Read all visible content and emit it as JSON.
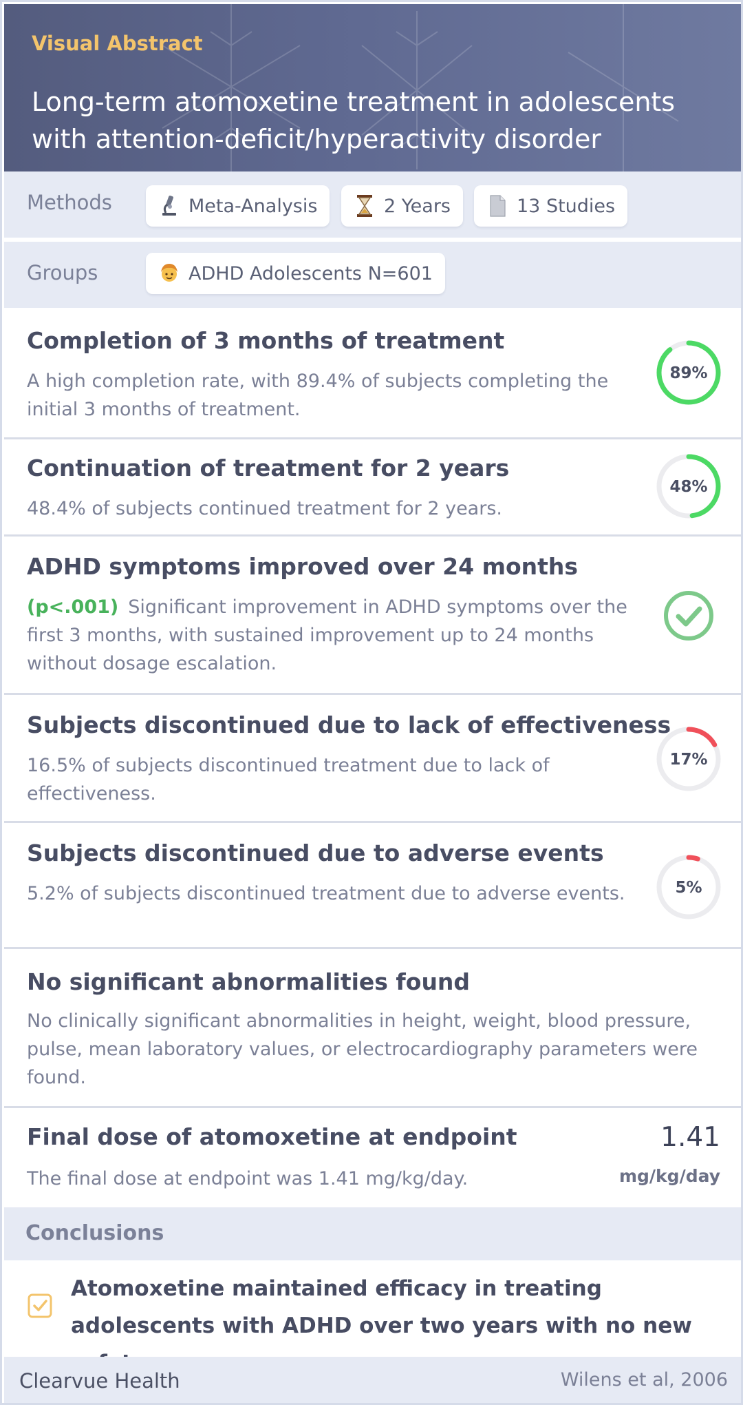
{
  "header": {
    "kicker": "Visual Abstract",
    "title": "Long-term atomoxetine treatment in adolescents with attention-deficit/hyperactivity disorder"
  },
  "methods": {
    "label": "Methods",
    "pills": [
      {
        "icon": "microscope-icon",
        "text": "Meta-Analysis"
      },
      {
        "icon": "hourglass-icon",
        "text": "2 Years"
      },
      {
        "icon": "document-icon",
        "text": "13 Studies"
      }
    ]
  },
  "groups": {
    "label": "Groups",
    "pills": [
      {
        "icon": "adolescent-icon",
        "text": "ADHD Adolescents N=601"
      }
    ]
  },
  "outcomes": [
    {
      "title": "Completion of 3 months of treatment",
      "description": "A high completion rate, with 89.4% of subjects completing the initial 3 months of treatment.",
      "indicator": "ring",
      "value": 0.89,
      "label": "89%",
      "color": "#4cd964"
    },
    {
      "title": "Continuation of treatment for 2 years",
      "description": "48.4% of subjects continued treatment for 2 years.",
      "indicator": "ring",
      "value": 0.48,
      "label": "48%",
      "color": "#4cd964"
    },
    {
      "title": "ADHD symptoms improved over 24 months",
      "pvalue": "(p<.001)",
      "description": "Significant improvement in ADHD symptoms over the first 3 months, with sustained improvement up to 24 months without dosage escalation.",
      "indicator": "check",
      "color": "#7dc98a"
    },
    {
      "title": "Subjects discontinued due to lack of effectiveness",
      "description": "16.5% of subjects discontinued treatment due to lack of effectiveness.",
      "indicator": "ring",
      "value": 0.17,
      "label": "17%",
      "color": "#f0505a"
    },
    {
      "title": "Subjects discontinued due to adverse events",
      "description": "5.2% of subjects discontinued treatment due to adverse events.",
      "indicator": "ring",
      "value": 0.05,
      "label": "5%",
      "color": "#f0505a"
    },
    {
      "title": "No significant abnormalities found",
      "description": "No clinically significant abnormalities in height, weight, blood pressure, pulse, mean laboratory values, or electrocardiography parameters were found."
    },
    {
      "title": "Final dose of atomoxetine at endpoint",
      "description": "The final dose at endpoint was 1.41 mg/kg/day.",
      "dose_value": "1.41",
      "dose_unit": "mg/kg/day"
    }
  ],
  "conclusions": {
    "heading": "Conclusions",
    "text": "Atomoxetine maintained efficacy in treating adolescents with ADHD over two years with no new safety concerns."
  },
  "footer": {
    "brand": "Clearvue Health",
    "citation": "Wilens et al, 2006"
  },
  "colors": {
    "header_bg": "#5a6489",
    "kicker": "#f3c46c",
    "ring_track": "#ececef",
    "green": "#4cd964",
    "red": "#f0505a",
    "pvalue": "#48b25b",
    "check_border": "#f3c46c"
  }
}
